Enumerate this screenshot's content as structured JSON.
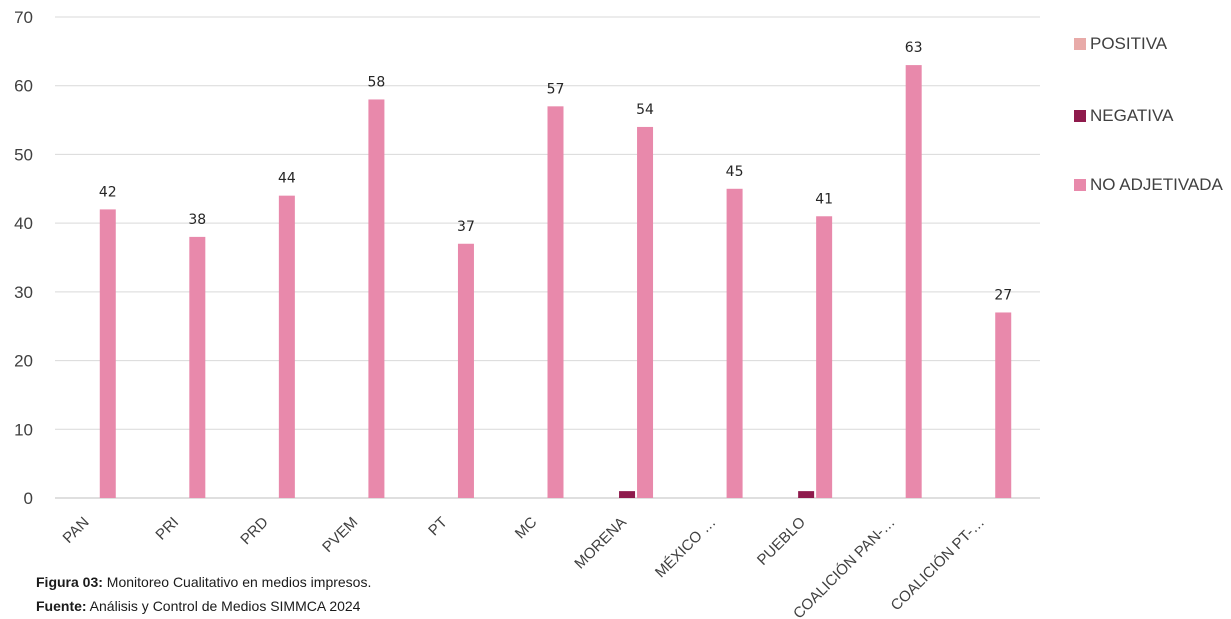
{
  "chart_data": {
    "type": "bar",
    "categories": [
      "PAN",
      "PRI",
      "PRD",
      "PVEM",
      "PT",
      "MC",
      "MORENA",
      "MÉXICO …",
      "PUEBLO",
      "COALICIÓN PAN-…",
      "COALICIÓN PT-…"
    ],
    "series": [
      {
        "name": "POSITIVA",
        "color": "#e8aaa8",
        "values": [
          0,
          0,
          0,
          0,
          0,
          0,
          0,
          0,
          0,
          0,
          0
        ]
      },
      {
        "name": "NEGATIVA",
        "color": "#8e1a4c",
        "values": [
          0,
          0,
          0,
          0,
          0,
          0,
          1,
          0,
          1,
          0,
          0
        ]
      },
      {
        "name": "NO ADJETIVADA",
        "color": "#e889ab",
        "values": [
          42,
          38,
          44,
          58,
          37,
          57,
          54,
          45,
          41,
          63,
          27
        ]
      }
    ],
    "data_labels": [
      "42",
      "38",
      "44",
      "58",
      "37",
      "57",
      "54",
      "45",
      "41",
      "63",
      "27"
    ],
    "y_ticks": [
      "0",
      "10",
      "20",
      "30",
      "40",
      "50",
      "60",
      "70"
    ],
    "ylim": [
      0,
      70
    ],
    "grid": true,
    "legend_position": "right",
    "title": "",
    "xlabel": "",
    "ylabel": ""
  },
  "caption": {
    "figure_label": "Figura 03:",
    "figure_text": " Monitoreo Cualitativo en medios impresos.",
    "source_label": "Fuente:",
    "source_text": " Análisis y Control de Medios SIMMCA 2024"
  }
}
